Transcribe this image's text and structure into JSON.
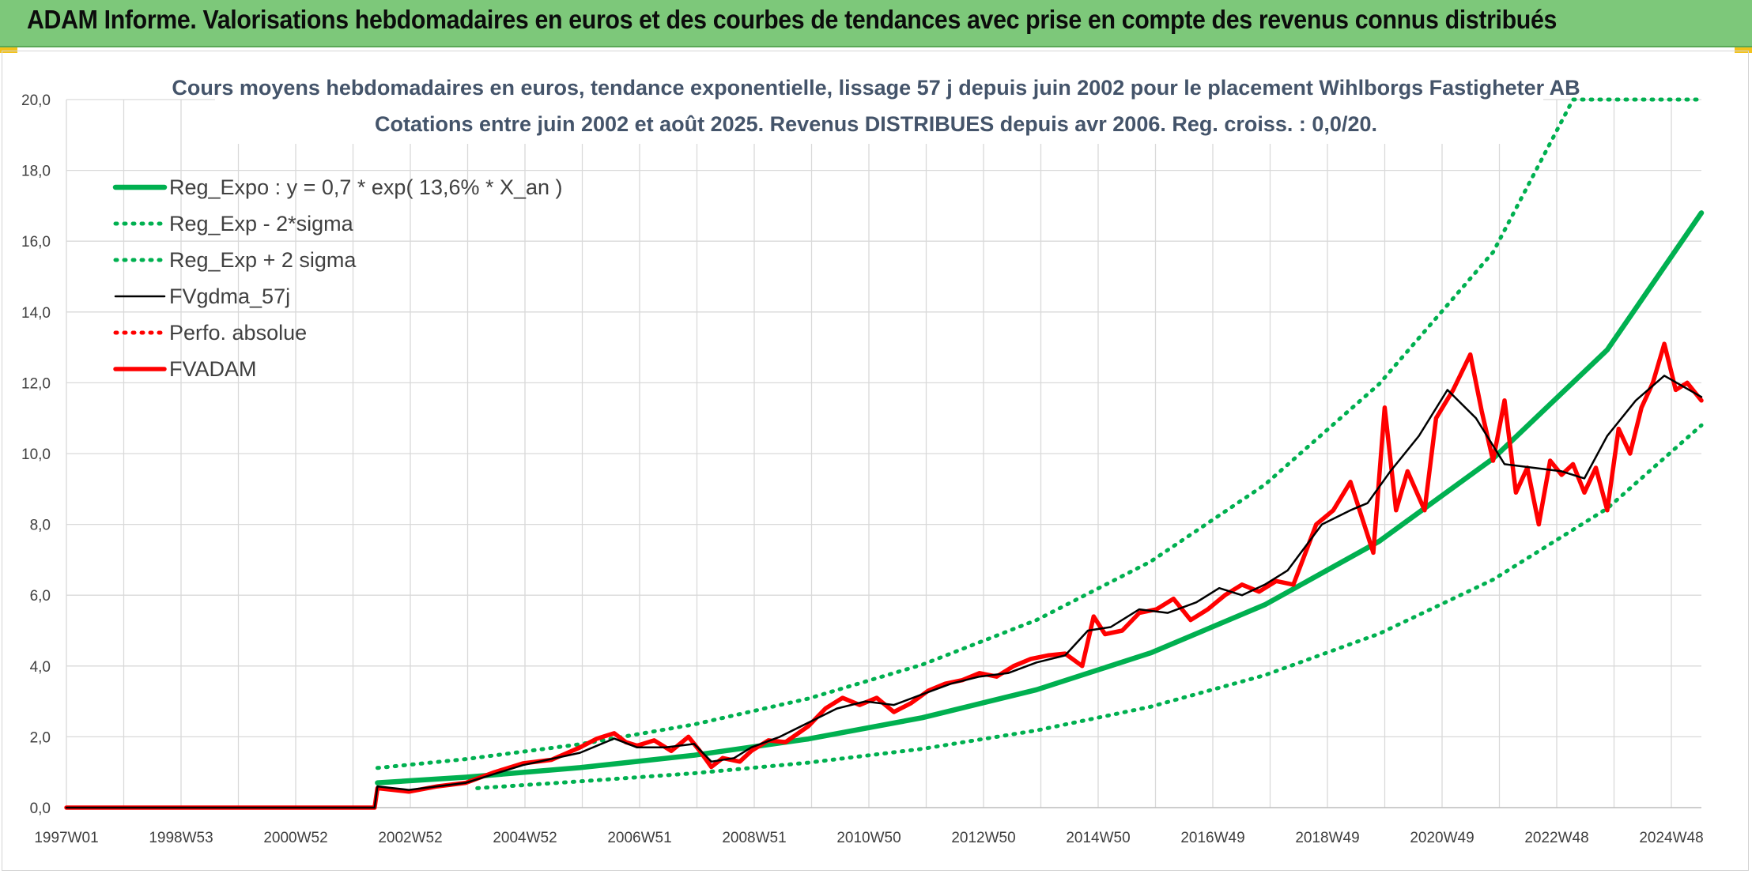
{
  "banner": {
    "title": "ADAM Informe. Valorisations hebdomadaires en euros et des courbes de tendances avec prise en compte des revenus connus distribués"
  },
  "colors": {
    "banner": "#7dc87a",
    "reg_expo": "#00b050",
    "fvgdma": "#000000",
    "fvadam": "#ff0000",
    "perfo": "#ff0000",
    "title": "#44546a",
    "grid": "#d9d9d9"
  },
  "chart_data": {
    "type": "line",
    "title": "Cours moyens hebdomadaires en euros, tendance exponentielle, lissage 57 j depuis juin 2002 pour le placement Wihlborgs Fastigheter AB",
    "subtitle": "Cotations entre juin 2002 et août 2025. Revenus DISTRIBUES depuis avr 2006. Reg. croiss. : 0,0/20.",
    "xlabel": "",
    "ylabel": "",
    "x_tick_labels": [
      "1997W01",
      "1998W53",
      "2000W52",
      "2002W52",
      "2004W52",
      "2006W51",
      "2008W51",
      "2010W50",
      "2012W50",
      "2014W50",
      "2016W49",
      "2018W49",
      "2020W49",
      "2022W48",
      "2024W48"
    ],
    "y_tick_labels": [
      "0,0",
      "2,0",
      "4,0",
      "6,0",
      "8,0",
      "10,0",
      "12,0",
      "14,0",
      "16,0",
      "18,0",
      "20,0"
    ],
    "xlim": [
      1997.0,
      2025.65
    ],
    "ylim": [
      0,
      20
    ],
    "grid": true,
    "legend_position": "top-left",
    "series": [
      {
        "name": "Reg_Expo : y = 0,7 * exp( 13,6% *  X_an )",
        "style": "solid-thick",
        "color": "#00b050",
        "x": [
          2002.45,
          2004,
          2006,
          2008,
          2010,
          2012,
          2014,
          2016,
          2018,
          2020,
          2022,
          2024,
          2025.65
        ],
        "y": [
          0.7,
          0.86,
          1.13,
          1.48,
          1.94,
          2.54,
          3.33,
          4.37,
          5.73,
          7.52,
          9.86,
          12.93,
          16.8
        ]
      },
      {
        "name": "Reg_Exp - 2*sigma",
        "style": "dotted",
        "color": "#00b050",
        "x": [
          2004.2,
          2006,
          2008,
          2010,
          2012,
          2014,
          2016,
          2018,
          2020,
          2022,
          2024,
          2025.65
        ],
        "y": [
          0.55,
          0.74,
          0.97,
          1.27,
          1.66,
          2.18,
          2.85,
          3.74,
          4.91,
          6.44,
          8.45,
          10.8
        ]
      },
      {
        "name": "Reg_Exp + 2 sigma",
        "style": "dotted",
        "color": "#00b050",
        "x": [
          2002.45,
          2004,
          2006,
          2008,
          2010,
          2012,
          2014,
          2016,
          2018,
          2020,
          2022,
          2023.4,
          2025.65
        ],
        "y": [
          1.12,
          1.37,
          1.79,
          2.35,
          3.08,
          4.04,
          5.3,
          6.95,
          9.12,
          11.96,
          15.69,
          20.0,
          20.0
        ]
      },
      {
        "name": "FVgdma_57j",
        "style": "solid",
        "color": "#000000",
        "x": [
          1997.0,
          2002.4,
          2002.45,
          2003,
          2004,
          2005,
          2006,
          2006.6,
          2007,
          2007.5,
          2008,
          2008.3,
          2008.7,
          2009,
          2009.5,
          2010,
          2010.5,
          2011,
          2011.5,
          2012,
          2012.5,
          2013,
          2013.5,
          2014,
          2014.5,
          2014.9,
          2015.3,
          2015.8,
          2016.3,
          2016.8,
          2017.2,
          2017.6,
          2018.0,
          2018.4,
          2019.0,
          2019.5,
          2019.8,
          2020.2,
          2020.7,
          2021.2,
          2021.7,
          2022.2,
          2022.7,
          2023.2,
          2023.6,
          2024.0,
          2024.5,
          2025.0,
          2025.65
        ],
        "y": [
          0.0,
          0.0,
          0.6,
          0.5,
          0.7,
          1.2,
          1.55,
          1.95,
          1.7,
          1.7,
          1.8,
          1.3,
          1.4,
          1.7,
          2.0,
          2.4,
          2.8,
          3.0,
          2.9,
          3.2,
          3.5,
          3.7,
          3.8,
          4.1,
          4.3,
          5.0,
          5.1,
          5.6,
          5.5,
          5.8,
          6.2,
          6.0,
          6.3,
          6.7,
          8.0,
          8.4,
          8.6,
          9.5,
          10.5,
          11.8,
          11.0,
          9.7,
          9.6,
          9.5,
          9.3,
          10.5,
          11.5,
          12.2,
          11.6
        ]
      },
      {
        "name": "Perfo. absolue",
        "style": "dotted",
        "color": "#ff0000",
        "x": [],
        "y": []
      },
      {
        "name": "FVADAM",
        "style": "solid-thick",
        "color": "#ff0000",
        "x": [
          1997.0,
          2002.4,
          2002.45,
          2003,
          2003.5,
          2004,
          2004.5,
          2005,
          2005.5,
          2006,
          2006.3,
          2006.6,
          2006.8,
          2007,
          2007.3,
          2007.6,
          2007.9,
          2008.1,
          2008.3,
          2008.5,
          2008.8,
          2009,
          2009.3,
          2009.6,
          2010,
          2010.3,
          2010.6,
          2010.9,
          2011.2,
          2011.5,
          2011.8,
          2012.1,
          2012.4,
          2012.7,
          2013.0,
          2013.3,
          2013.6,
          2013.9,
          2014.2,
          2014.5,
          2014.8,
          2015.0,
          2015.2,
          2015.5,
          2015.8,
          2016.1,
          2016.4,
          2016.7,
          2017.0,
          2017.3,
          2017.6,
          2017.9,
          2018.2,
          2018.5,
          2018.9,
          2019.2,
          2019.5,
          2019.9,
          2020.1,
          2020.3,
          2020.5,
          2020.8,
          2021.0,
          2021.3,
          2021.6,
          2021.8,
          2022.0,
          2022.2,
          2022.4,
          2022.6,
          2022.8,
          2023.0,
          2023.2,
          2023.4,
          2023.6,
          2023.8,
          2024.0,
          2024.2,
          2024.4,
          2024.6,
          2024.8,
          2025.0,
          2025.2,
          2025.4,
          2025.65
        ],
        "y": [
          0.0,
          0.0,
          0.55,
          0.45,
          0.6,
          0.7,
          1.0,
          1.25,
          1.35,
          1.7,
          1.95,
          2.1,
          1.85,
          1.75,
          1.9,
          1.6,
          2.0,
          1.6,
          1.15,
          1.4,
          1.3,
          1.6,
          1.9,
          1.85,
          2.3,
          2.8,
          3.1,
          2.9,
          3.1,
          2.7,
          2.95,
          3.3,
          3.5,
          3.6,
          3.8,
          3.7,
          4.0,
          4.2,
          4.3,
          4.35,
          4.0,
          5.4,
          4.9,
          5.0,
          5.5,
          5.6,
          5.9,
          5.3,
          5.6,
          6.0,
          6.3,
          6.1,
          6.4,
          6.3,
          8.0,
          8.4,
          9.2,
          7.2,
          11.3,
          8.4,
          9.5,
          8.4,
          11.0,
          11.8,
          12.8,
          11.2,
          9.8,
          11.5,
          8.9,
          9.6,
          8.0,
          9.8,
          9.4,
          9.7,
          8.9,
          9.6,
          8.4,
          10.7,
          10.0,
          11.3,
          12.0,
          13.1,
          11.8,
          12.0,
          11.5
        ]
      }
    ]
  }
}
